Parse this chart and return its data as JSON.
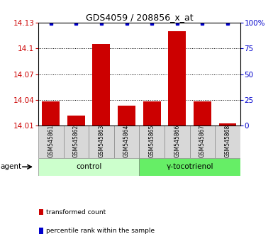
{
  "title": "GDS4059 / 208856_x_at",
  "samples": [
    "GSM545861",
    "GSM545862",
    "GSM545863",
    "GSM545864",
    "GSM545865",
    "GSM545866",
    "GSM545867",
    "GSM545868"
  ],
  "bar_values": [
    14.038,
    14.022,
    14.105,
    14.033,
    14.038,
    14.12,
    14.038,
    14.013
  ],
  "ylim": [
    14.01,
    14.13
  ],
  "yticks": [
    14.01,
    14.04,
    14.07,
    14.1,
    14.13
  ],
  "ytick_labels": [
    "14.01",
    "14.04",
    "14.07",
    "14.1",
    "14.13"
  ],
  "y2lim": [
    0,
    100
  ],
  "y2ticks": [
    0,
    25,
    50,
    75,
    100
  ],
  "y2tick_labels": [
    "0",
    "25",
    "50",
    "75",
    "100%"
  ],
  "bar_color": "#cc0000",
  "dot_color": "#0000cc",
  "bar_width": 0.7,
  "groups": [
    {
      "label": "control",
      "start": 0,
      "end": 3,
      "color": "#ccffcc"
    },
    {
      "label": "γ-tocotrienol",
      "start": 4,
      "end": 7,
      "color": "#66ee66"
    }
  ],
  "agent_label": "agent",
  "legend_items": [
    {
      "color": "#cc0000",
      "label": "transformed count"
    },
    {
      "color": "#0000cc",
      "label": "percentile rank within the sample"
    }
  ],
  "background_color": "#d8d8d8",
  "tick_label_color_left": "#cc0000",
  "tick_label_color_right": "#0000cc",
  "title_fontsize": 9
}
